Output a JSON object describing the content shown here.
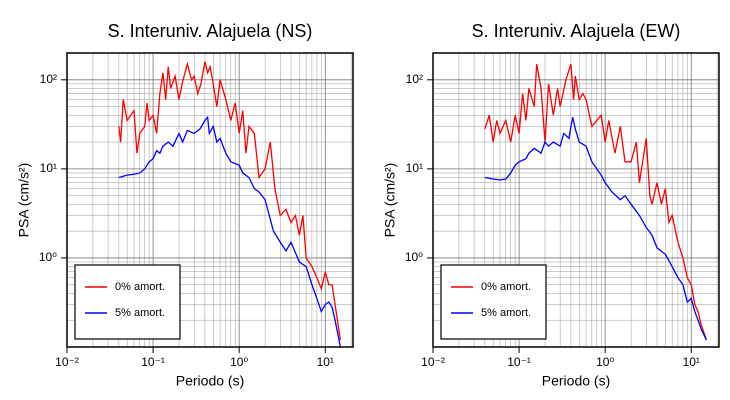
{
  "chart_data": [
    {
      "type": "line",
      "title": "S. Interuniv. Alajuela (NS)",
      "xlabel": "Periodo (s)",
      "ylabel": "PSA (cm/s²)",
      "log_x": true,
      "log_y": true,
      "grid": true,
      "legend": "lower left",
      "xlim": [
        0.01,
        21
      ],
      "ylim": [
        0.1,
        200
      ],
      "xticks": [
        {
          "value": 0.01,
          "label": "10⁻²"
        },
        {
          "value": 0.1,
          "label": "10⁻¹"
        },
        {
          "value": 1,
          "label": "10⁰"
        },
        {
          "value": 10,
          "label": "10¹"
        }
      ],
      "yticks": [
        {
          "value": 1,
          "label": "10⁰"
        },
        {
          "value": 10,
          "label": "10¹"
        },
        {
          "value": 100,
          "label": "10²"
        }
      ],
      "series": [
        {
          "name": "0% amort.",
          "color": "#ff0000",
          "x": [
            0.04,
            0.042,
            0.045,
            0.05,
            0.055,
            0.06,
            0.065,
            0.07,
            0.08,
            0.085,
            0.09,
            0.1,
            0.11,
            0.12,
            0.13,
            0.14,
            0.15,
            0.16,
            0.18,
            0.2,
            0.22,
            0.25,
            0.28,
            0.3,
            0.33,
            0.36,
            0.4,
            0.43,
            0.46,
            0.5,
            0.55,
            0.6,
            0.7,
            0.8,
            0.9,
            1.0,
            1.1,
            1.2,
            1.3,
            1.5,
            1.7,
            2.0,
            2.3,
            2.6,
            3.0,
            3.5,
            4.0,
            4.5,
            5,
            5.5,
            6,
            7,
            8,
            9,
            10,
            11,
            12,
            13,
            15
          ],
          "values": [
            30,
            20,
            60,
            35,
            40,
            45,
            15,
            25,
            30,
            55,
            35,
            40,
            25,
            70,
            120,
            60,
            140,
            80,
            110,
            60,
            95,
            150,
            100,
            110,
            70,
            90,
            160,
            120,
            140,
            90,
            50,
            100,
            60,
            35,
            55,
            25,
            45,
            15,
            30,
            25,
            8,
            10,
            20,
            6,
            3,
            3.5,
            2.5,
            3,
            1.8,
            3,
            1,
            0.8,
            0.6,
            0.45,
            0.7,
            0.5,
            0.5,
            0.3,
            0.12
          ]
        },
        {
          "name": "5% amort.",
          "color": "#0000ff",
          "x": [
            0.04,
            0.05,
            0.06,
            0.07,
            0.08,
            0.09,
            0.1,
            0.11,
            0.12,
            0.13,
            0.15,
            0.17,
            0.2,
            0.22,
            0.25,
            0.3,
            0.35,
            0.4,
            0.43,
            0.45,
            0.5,
            0.55,
            0.6,
            0.7,
            0.8,
            1.0,
            1.1,
            1.3,
            1.5,
            1.7,
            2.0,
            2.5,
            3,
            3.5,
            4,
            5,
            6,
            7,
            8,
            9,
            10,
            11,
            12,
            13,
            15
          ],
          "values": [
            8,
            8.5,
            8.7,
            9,
            10,
            12,
            13,
            16,
            15,
            18,
            20,
            18,
            25,
            20,
            27,
            25,
            28,
            35,
            38,
            25,
            30,
            20,
            22,
            15,
            12,
            11,
            9,
            8,
            6,
            5.5,
            4.5,
            2,
            1.5,
            1.2,
            1.5,
            0.9,
            0.8,
            0.5,
            0.35,
            0.25,
            0.3,
            0.32,
            0.28,
            0.2,
            0.1
          ]
        }
      ]
    },
    {
      "type": "line",
      "title": "S. Interuniv. Alajuela (EW)",
      "xlabel": "Periodo (s)",
      "ylabel": "PSA (cm/s²)",
      "log_x": true,
      "log_y": true,
      "grid": true,
      "legend": "lower left",
      "xlim": [
        0.01,
        21
      ],
      "ylim": [
        0.1,
        200
      ],
      "xticks": [
        {
          "value": 0.01,
          "label": "10⁻²"
        },
        {
          "value": 0.1,
          "label": "10⁻¹"
        },
        {
          "value": 1,
          "label": "10⁰"
        },
        {
          "value": 10,
          "label": "10¹"
        }
      ],
      "yticks": [
        {
          "value": 1,
          "label": "10⁰"
        },
        {
          "value": 10,
          "label": "10¹"
        },
        {
          "value": 100,
          "label": "10²"
        }
      ],
      "series": [
        {
          "name": "0% amort.",
          "color": "#ff0000",
          "x": [
            0.04,
            0.045,
            0.05,
            0.055,
            0.06,
            0.07,
            0.08,
            0.09,
            0.1,
            0.11,
            0.12,
            0.13,
            0.15,
            0.16,
            0.18,
            0.2,
            0.22,
            0.25,
            0.28,
            0.3,
            0.35,
            0.4,
            0.43,
            0.45,
            0.5,
            0.55,
            0.6,
            0.7,
            0.8,
            0.9,
            1.0,
            1.1,
            1.3,
            1.5,
            1.7,
            2.0,
            2.3,
            2.5,
            3.0,
            3.3,
            3.5,
            4,
            4.5,
            5,
            5.5,
            6,
            7,
            8,
            9,
            10,
            11,
            12,
            13,
            15
          ],
          "values": [
            28,
            40,
            20,
            35,
            25,
            35,
            20,
            40,
            25,
            70,
            35,
            80,
            50,
            150,
            80,
            20,
            90,
            40,
            80,
            50,
            100,
            150,
            60,
            110,
            60,
            70,
            60,
            30,
            35,
            40,
            20,
            35,
            15,
            30,
            12,
            12,
            20,
            7,
            22,
            5,
            4,
            7,
            4,
            6,
            2.5,
            3,
            1.5,
            1,
            0.6,
            0.5,
            0.3,
            0.25,
            0.18,
            0.12
          ]
        },
        {
          "name": "5% amort.",
          "color": "#0000ff",
          "x": [
            0.04,
            0.05,
            0.06,
            0.07,
            0.08,
            0.09,
            0.1,
            0.12,
            0.13,
            0.15,
            0.18,
            0.2,
            0.22,
            0.25,
            0.3,
            0.33,
            0.38,
            0.4,
            0.42,
            0.45,
            0.5,
            0.6,
            0.7,
            0.8,
            0.9,
            1.0,
            1.2,
            1.5,
            1.7,
            2.0,
            2.5,
            3,
            3.5,
            4,
            5,
            6,
            7,
            8,
            9,
            10,
            11,
            12,
            13,
            15
          ],
          "values": [
            8,
            7.7,
            7.5,
            7.7,
            9,
            11,
            12,
            13,
            15,
            17,
            15,
            20,
            18,
            20,
            18,
            25,
            22,
            30,
            38,
            28,
            20,
            18,
            12,
            10,
            8.5,
            7,
            5.5,
            4.5,
            5,
            4,
            3,
            2.2,
            1.8,
            1.3,
            1.1,
            0.8,
            0.6,
            0.5,
            0.32,
            0.35,
            0.25,
            0.2,
            0.16,
            0.12
          ]
        }
      ]
    }
  ]
}
